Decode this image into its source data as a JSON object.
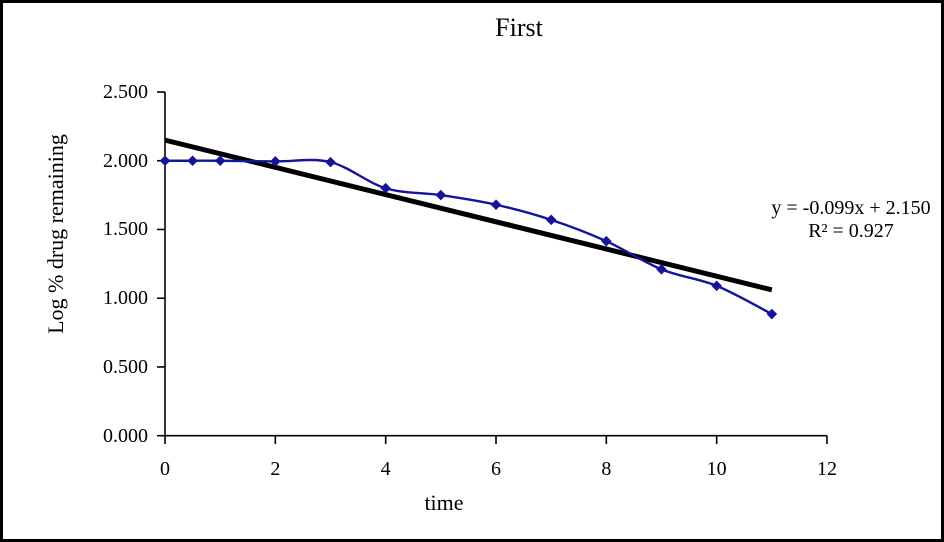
{
  "title": "First",
  "y_axis": {
    "label": "Log % drug remaining",
    "tick_labels": [
      "2.500",
      "2.000",
      "1.500",
      "1.000",
      "0.500",
      "0.000"
    ]
  },
  "x_axis": {
    "label": "time",
    "tick_labels": [
      "0",
      "2",
      "4",
      "6",
      "8",
      "10",
      "12"
    ]
  },
  "annotation": {
    "equation": "y = -0.099x + 2.150",
    "r_squared": "R² = 0.927"
  },
  "colors": {
    "series": "#15159b",
    "trendline": "#000000",
    "axis": "#000000"
  },
  "chart_data": {
    "type": "line",
    "title": "First",
    "xlabel": "time",
    "ylabel": "Log % drug remaining",
    "xlim": [
      0,
      12
    ],
    "ylim": [
      0.0,
      2.5
    ],
    "x_ticks": [
      0,
      2,
      4,
      6,
      8,
      10,
      12
    ],
    "y_ticks": [
      2.5,
      2.0,
      1.5,
      1.0,
      0.5,
      0.0
    ],
    "grid": false,
    "legend": false,
    "series": [
      {
        "name": "Log % drug remaining",
        "marker": "diamond",
        "smoothed": true,
        "x": [
          0,
          0.5,
          1,
          2,
          3,
          4,
          5,
          6,
          7,
          8,
          9,
          10,
          11
        ],
        "y": [
          2.0,
          2.0,
          2.0,
          1.995,
          1.99,
          1.8,
          1.75,
          1.68,
          1.57,
          1.415,
          1.21,
          1.09,
          0.885
        ]
      }
    ],
    "trendline": {
      "slope": -0.099,
      "intercept": 2.15,
      "r_squared": 0.927,
      "x_start": 0,
      "x_end": 11
    }
  }
}
